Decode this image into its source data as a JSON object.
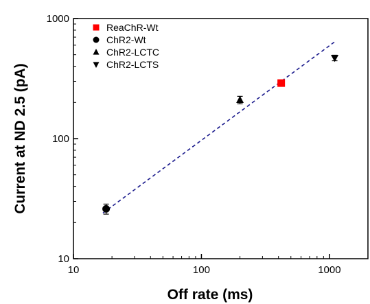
{
  "chart_data": {
    "type": "scatter",
    "xlabel": "Off rate (ms)",
    "ylabel": "Current at ND 2.5 (pA)",
    "xscale": "log",
    "yscale": "log",
    "xlim": [
      10,
      2000
    ],
    "ylim": [
      10,
      1000
    ],
    "x_ticks": [
      {
        "value": 10,
        "label": "10"
      },
      {
        "value": 100,
        "label": "100"
      },
      {
        "value": 1000,
        "label": "1000"
      }
    ],
    "y_ticks": [
      {
        "value": 10,
        "label": "10"
      },
      {
        "value": 100,
        "label": "100"
      },
      {
        "value": 1000,
        "label": "1000"
      }
    ],
    "grid": false,
    "legend_position": "top-left",
    "series": [
      {
        "name": "ReaChR-Wt",
        "marker": "square",
        "color": "#ff0000",
        "points": [
          {
            "x": 420,
            "y": 290,
            "yerr": 18
          }
        ]
      },
      {
        "name": "ChR2-Wt",
        "marker": "circle",
        "color": "#000000",
        "points": [
          {
            "x": 18,
            "y": 26,
            "yerr": 2.5
          }
        ]
      },
      {
        "name": "ChR2-LCTC",
        "marker": "triangle-up",
        "color": "#000000",
        "points": [
          {
            "x": 200,
            "y": 210,
            "yerr": 15
          }
        ]
      },
      {
        "name": "ChR2-LCTS",
        "marker": "triangle-down",
        "color": "#000000",
        "points": [
          {
            "x": 1100,
            "y": 470,
            "yerr": 25
          }
        ]
      }
    ],
    "fit_line": {
      "style": "dashed",
      "color": "#1a1a8c",
      "x": [
        17,
        1100
      ],
      "y": [
        24,
        640
      ]
    }
  }
}
